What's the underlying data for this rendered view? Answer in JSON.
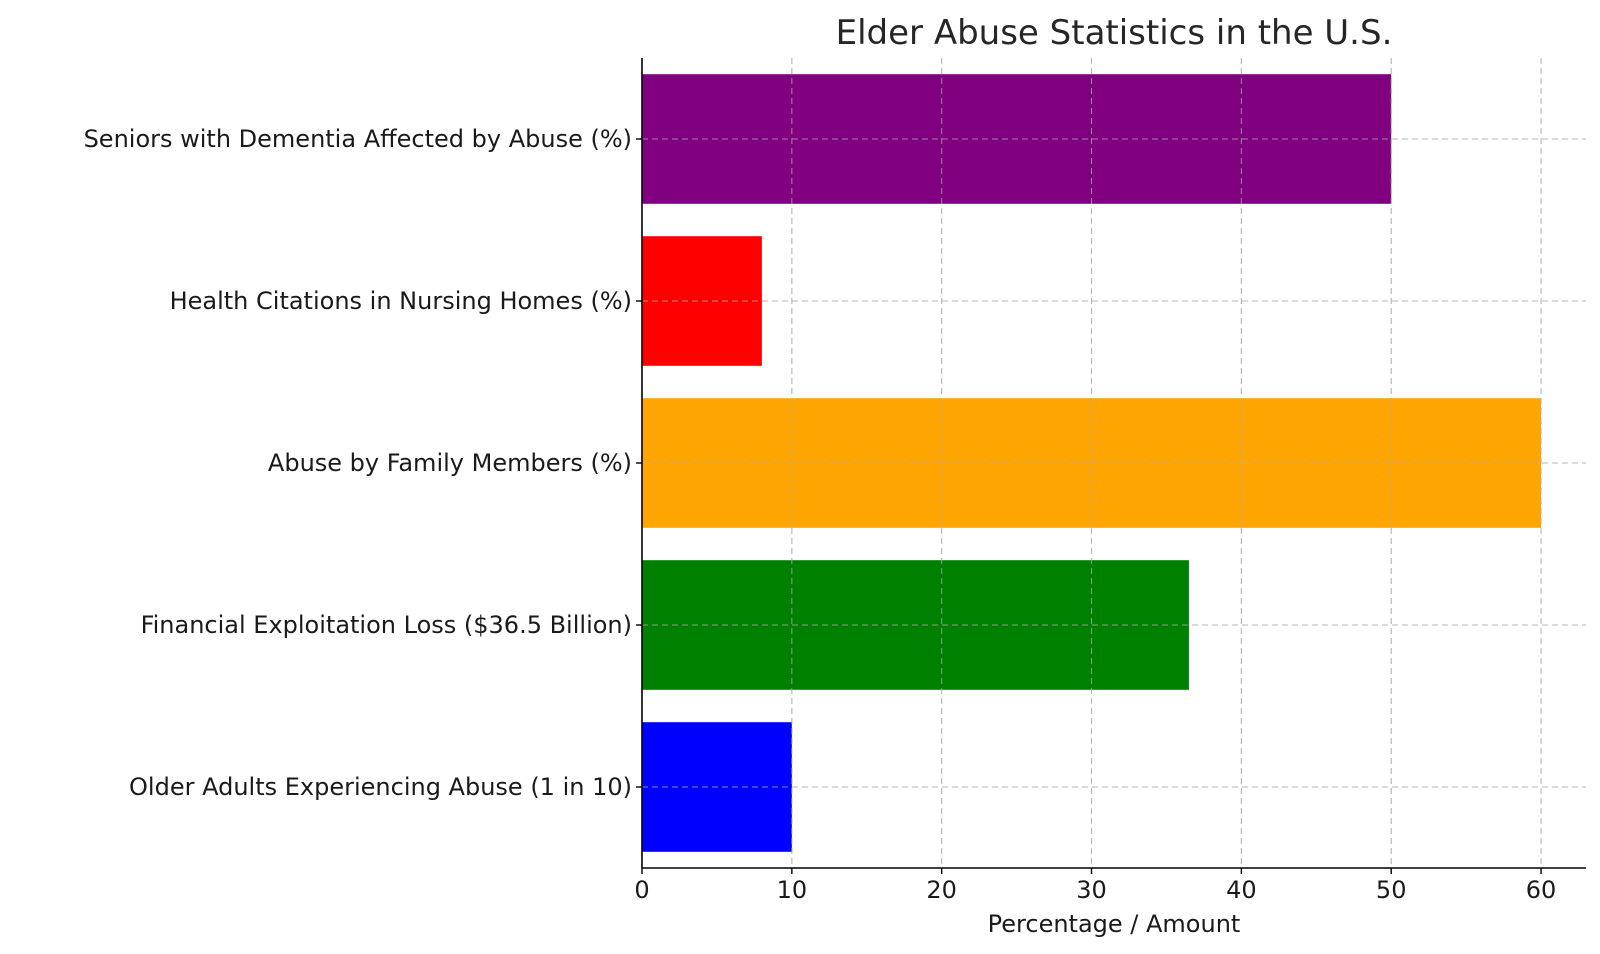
{
  "chart_data": {
    "type": "bar",
    "orientation": "horizontal",
    "title": "Elder Abuse Statistics in the U.S.",
    "xlabel": "Percentage / Amount",
    "ylabel": "",
    "xlim": [
      0,
      63
    ],
    "xticks": [
      0,
      10,
      20,
      30,
      40,
      50,
      60
    ],
    "grid": true,
    "categories": [
      "Older Adults Experiencing Abuse (1 in 10)",
      "Financial Exploitation Loss ($36.5 Billion)",
      "Abuse by Family Members (%)",
      "Health Citations in Nursing Homes (%)",
      "Seniors with Dementia Affected by Abuse (%)"
    ],
    "values": [
      10,
      36.5,
      60,
      8,
      50
    ],
    "colors": [
      "#0000ff",
      "#008000",
      "#ffa500",
      "#ff0000",
      "#800080"
    ]
  }
}
